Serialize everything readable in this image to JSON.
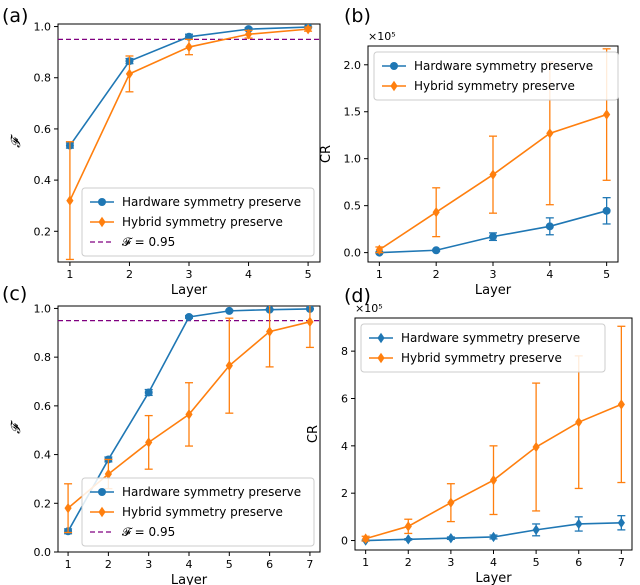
{
  "colors": {
    "hardware": "#1f77b4",
    "hybrid": "#ff7f0e",
    "reference": "#800080"
  },
  "chart_data": [
    {
      "panel": "(a)",
      "type": "line",
      "xlabel": "Layer",
      "ylabel": "𝓕",
      "x": [
        1,
        2,
        3,
        4,
        5
      ],
      "xticks": [
        "1",
        "2",
        "3",
        "4",
        "5"
      ],
      "yticks": [
        "0.2",
        "0.4",
        "0.6",
        "0.8",
        "1.0"
      ],
      "xlim": [
        0.8,
        5.2
      ],
      "ylim": [
        0.08,
        1.01
      ],
      "grid": false,
      "legend": "lower-right",
      "reference_line": {
        "y": 0.95,
        "label": "𝓕 = 0.95"
      },
      "series": [
        {
          "name": "Hardware symmetry preserve",
          "marker": "circle",
          "values": [
            0.535,
            0.865,
            0.96,
            0.99,
            0.998
          ],
          "err_low": [
            0.01,
            0.01,
            0.01,
            0.005,
            0.002
          ],
          "err_high": [
            0.01,
            0.01,
            0.01,
            0.005,
            0.002
          ]
        },
        {
          "name": "Hybrid symmetry preserve",
          "marker": "diamond",
          "values": [
            0.32,
            0.815,
            0.92,
            0.97,
            0.99
          ],
          "err_low": [
            0.23,
            0.07,
            0.03,
            0.015,
            0.008
          ],
          "err_high": [
            0.23,
            0.07,
            0.03,
            0.015,
            0.008
          ]
        }
      ]
    },
    {
      "panel": "(b)",
      "type": "line",
      "xlabel": "Layer",
      "ylabel": "CR",
      "offset_text": "×10⁵",
      "x": [
        1,
        2,
        3,
        4,
        5
      ],
      "xticks": [
        "1",
        "2",
        "3",
        "4",
        "5"
      ],
      "yticks": [
        "0.0",
        "0.5",
        "1.0",
        "1.5",
        "2.0"
      ],
      "ytick_values": [
        0,
        0.5,
        1.0,
        1.5,
        2.0
      ],
      "xlim": [
        0.8,
        5.2
      ],
      "ylim": [
        -0.1,
        2.2
      ],
      "grid": false,
      "legend": "top-left",
      "series": [
        {
          "name": "Hardware symmetry preserve",
          "marker": "circle",
          "values": [
            0.0,
            0.025,
            0.17,
            0.28,
            0.445
          ],
          "err_low": [
            0.005,
            0.01,
            0.04,
            0.09,
            0.14
          ],
          "err_high": [
            0.005,
            0.01,
            0.04,
            0.09,
            0.14
          ]
        },
        {
          "name": "Hybrid symmetry preserve",
          "marker": "diamond",
          "values": [
            0.03,
            0.43,
            0.83,
            1.27,
            1.47
          ],
          "err_low": [
            0.03,
            0.26,
            0.41,
            0.76,
            0.7
          ],
          "err_high": [
            0.03,
            0.26,
            0.41,
            0.76,
            0.7
          ]
        }
      ]
    },
    {
      "panel": "(c)",
      "type": "line",
      "xlabel": "Layer",
      "ylabel": "𝓕",
      "x": [
        1,
        2,
        3,
        4,
        5,
        6,
        7
      ],
      "xticks": [
        "1",
        "2",
        "3",
        "4",
        "5",
        "6",
        "7"
      ],
      "yticks": [
        "0.0",
        "0.2",
        "0.4",
        "0.6",
        "0.8",
        "1.0"
      ],
      "ytick_values": [
        0,
        0.2,
        0.4,
        0.6,
        0.8,
        1.0
      ],
      "xlim": [
        0.75,
        7.25
      ],
      "ylim": [
        0.0,
        1.01
      ],
      "grid": false,
      "legend": "lower-right",
      "reference_line": {
        "y": 0.95,
        "label": "𝓕 = 0.95"
      },
      "series": [
        {
          "name": "Hardware symmetry preserve",
          "marker": "circle",
          "values": [
            0.085,
            0.38,
            0.655,
            0.965,
            0.99,
            0.995,
            0.998
          ],
          "err_low": [
            0.01,
            0.01,
            0.012,
            0.005,
            0.003,
            0.002,
            0.001
          ],
          "err_high": [
            0.01,
            0.01,
            0.012,
            0.005,
            0.003,
            0.002,
            0.001
          ]
        },
        {
          "name": "Hybrid symmetry preserve",
          "marker": "diamond",
          "values": [
            0.18,
            0.32,
            0.45,
            0.565,
            0.765,
            0.905,
            0.945
          ],
          "err_low": [
            0.1,
            0.06,
            0.11,
            0.13,
            0.195,
            0.145,
            0.105
          ],
          "err_high": [
            0.1,
            0.06,
            0.11,
            0.13,
            0.195,
            0.145,
            0.105
          ]
        }
      ]
    },
    {
      "panel": "(d)",
      "type": "line",
      "xlabel": "Layer",
      "ylabel": "CR",
      "offset_text": "×10⁵",
      "x": [
        1,
        2,
        3,
        4,
        5,
        6,
        7
      ],
      "xticks": [
        "1",
        "2",
        "3",
        "4",
        "5",
        "6",
        "7"
      ],
      "yticks": [
        "0",
        "2",
        "4",
        "6",
        "8"
      ],
      "ytick_values": [
        0,
        2,
        4,
        6,
        8
      ],
      "xlim": [
        0.75,
        7.25
      ],
      "ylim": [
        -0.4,
        9.4
      ],
      "grid": false,
      "legend": "top-left",
      "series": [
        {
          "name": "Hardware symmetry preserve",
          "marker": "diamond",
          "values": [
            0.0,
            0.05,
            0.1,
            0.15,
            0.45,
            0.7,
            0.75
          ],
          "err_low": [
            0.02,
            0.03,
            0.05,
            0.08,
            0.25,
            0.3,
            0.3
          ],
          "err_high": [
            0.02,
            0.03,
            0.05,
            0.08,
            0.25,
            0.3,
            0.3
          ]
        },
        {
          "name": "Hybrid symmetry preserve",
          "marker": "diamond",
          "values": [
            0.08,
            0.6,
            1.6,
            2.55,
            3.95,
            5.0,
            5.75
          ],
          "err_low": [
            0.1,
            0.3,
            0.8,
            1.45,
            2.7,
            2.8,
            3.3
          ],
          "err_high": [
            0.1,
            0.3,
            0.8,
            1.45,
            2.7,
            2.8,
            3.3
          ]
        }
      ]
    }
  ]
}
